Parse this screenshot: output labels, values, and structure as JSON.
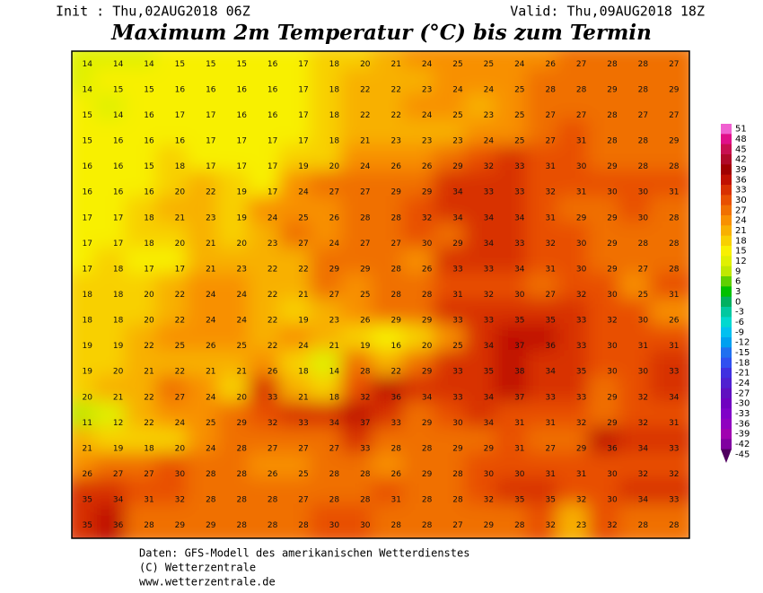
{
  "header": {
    "init": "Init : Thu,02AUG2018 06Z",
    "valid": "Valid: Thu,09AUG2018 18Z",
    "title": "Maximum 2m Temperatur (°C) bis zum Termin"
  },
  "footer": {
    "line1": "Daten: GFS-Modell des amerikanischen Wetterdienstes",
    "line2": "(C) Wetterzentrale",
    "line3": "www.wetterzentrale.de"
  },
  "colorbar": {
    "levels": [
      51,
      48,
      45,
      42,
      39,
      36,
      33,
      30,
      27,
      24,
      21,
      18,
      15,
      12,
      9,
      6,
      3,
      0,
      -3,
      -6,
      -9,
      -12,
      -15,
      -18,
      -21,
      -24,
      -27,
      -30,
      -33,
      -36,
      -39,
      -42,
      -45
    ],
    "colors": [
      "#f060d0",
      "#e0108a",
      "#c81050",
      "#b00a28",
      "#a00000",
      "#c01000",
      "#d83000",
      "#e85000",
      "#f07000",
      "#f89000",
      "#f8b000",
      "#f8d000",
      "#f8f000",
      "#e0f000",
      "#c0e800",
      "#60d000",
      "#00c000",
      "#00b060",
      "#00c8a0",
      "#00d8d0",
      "#00c0f0",
      "#00a0f0",
      "#2070f0",
      "#3050f0",
      "#4030e0",
      "#5020d0",
      "#6010c0",
      "#7000c0",
      "#8000c8",
      "#9000c0",
      "#a000b0",
      "#8000a0",
      "#500060"
    ]
  },
  "temperature_grid": [
    [
      14,
      14,
      14,
      15,
      15,
      15,
      16,
      17,
      18,
      20,
      21,
      24,
      25,
      25,
      24,
      26,
      27,
      28,
      28,
      27
    ],
    [
      14,
      15,
      15,
      16,
      16,
      16,
      16,
      17,
      18,
      22,
      22,
      23,
      24,
      24,
      25,
      28,
      28,
      29,
      28,
      29
    ],
    [
      15,
      14,
      16,
      17,
      17,
      16,
      16,
      17,
      18,
      22,
      22,
      24,
      25,
      23,
      25,
      27,
      27,
      28,
      27,
      27
    ],
    [
      15,
      16,
      16,
      16,
      17,
      17,
      17,
      17,
      18,
      21,
      23,
      23,
      23,
      24,
      25,
      27,
      31,
      28,
      28,
      29
    ],
    [
      16,
      16,
      15,
      18,
      17,
      17,
      17,
      19,
      20,
      24,
      26,
      26,
      29,
      32,
      33,
      31,
      30,
      29,
      28,
      28
    ],
    [
      16,
      16,
      16,
      20,
      22,
      19,
      17,
      24,
      27,
      27,
      29,
      29,
      34,
      33,
      33,
      32,
      31,
      30,
      30,
      31
    ],
    [
      17,
      17,
      18,
      21,
      23,
      19,
      24,
      25,
      26,
      28,
      28,
      32,
      34,
      34,
      34,
      31,
      29,
      29,
      30,
      28
    ],
    [
      17,
      17,
      18,
      20,
      21,
      20,
      23,
      27,
      24,
      27,
      27,
      30,
      29,
      34,
      33,
      32,
      30,
      29,
      28,
      28
    ],
    [
      17,
      18,
      17,
      17,
      21,
      23,
      22,
      22,
      29,
      29,
      28,
      26,
      33,
      33,
      34,
      31,
      30,
      29,
      27,
      28
    ],
    [
      18,
      18,
      20,
      22,
      24,
      24,
      22,
      21,
      27,
      25,
      28,
      28,
      31,
      32,
      30,
      27,
      32,
      30,
      25,
      31
    ],
    [
      18,
      18,
      20,
      22,
      24,
      24,
      22,
      19,
      23,
      26,
      29,
      29,
      33,
      33,
      35,
      35,
      33,
      32,
      30,
      26
    ],
    [
      19,
      19,
      22,
      25,
      26,
      25,
      22,
      24,
      21,
      19,
      16,
      20,
      25,
      34,
      37,
      36,
      33,
      30,
      31,
      31
    ],
    [
      19,
      20,
      21,
      22,
      21,
      21,
      26,
      18,
      14,
      28,
      22,
      29,
      33,
      35,
      38,
      34,
      35,
      30,
      30,
      33
    ],
    [
      20,
      21,
      22,
      27,
      24,
      20,
      33,
      21,
      18,
      32,
      36,
      34,
      33,
      34,
      37,
      33,
      33,
      29,
      32,
      34
    ],
    [
      11,
      12,
      22,
      24,
      25,
      29,
      32,
      33,
      34,
      37,
      33,
      29,
      30,
      34,
      31,
      31,
      32,
      29,
      32,
      31
    ],
    [
      21,
      19,
      18,
      20,
      24,
      28,
      27,
      27,
      27,
      33,
      28,
      28,
      29,
      29,
      31,
      27,
      29,
      36,
      34,
      33
    ],
    [
      26,
      27,
      27,
      30,
      28,
      28,
      26,
      25,
      28,
      28,
      26,
      29,
      28,
      30,
      30,
      31,
      31,
      30,
      32,
      32
    ],
    [
      35,
      34,
      31,
      32,
      28,
      28,
      28,
      27,
      28,
      28,
      31,
      28,
      28,
      32,
      35,
      35,
      32,
      30,
      34,
      33
    ],
    [
      35,
      36,
      28,
      29,
      29,
      28,
      28,
      28,
      30,
      30,
      28,
      28,
      27,
      29,
      28,
      32,
      23,
      32,
      28,
      28
    ]
  ]
}
